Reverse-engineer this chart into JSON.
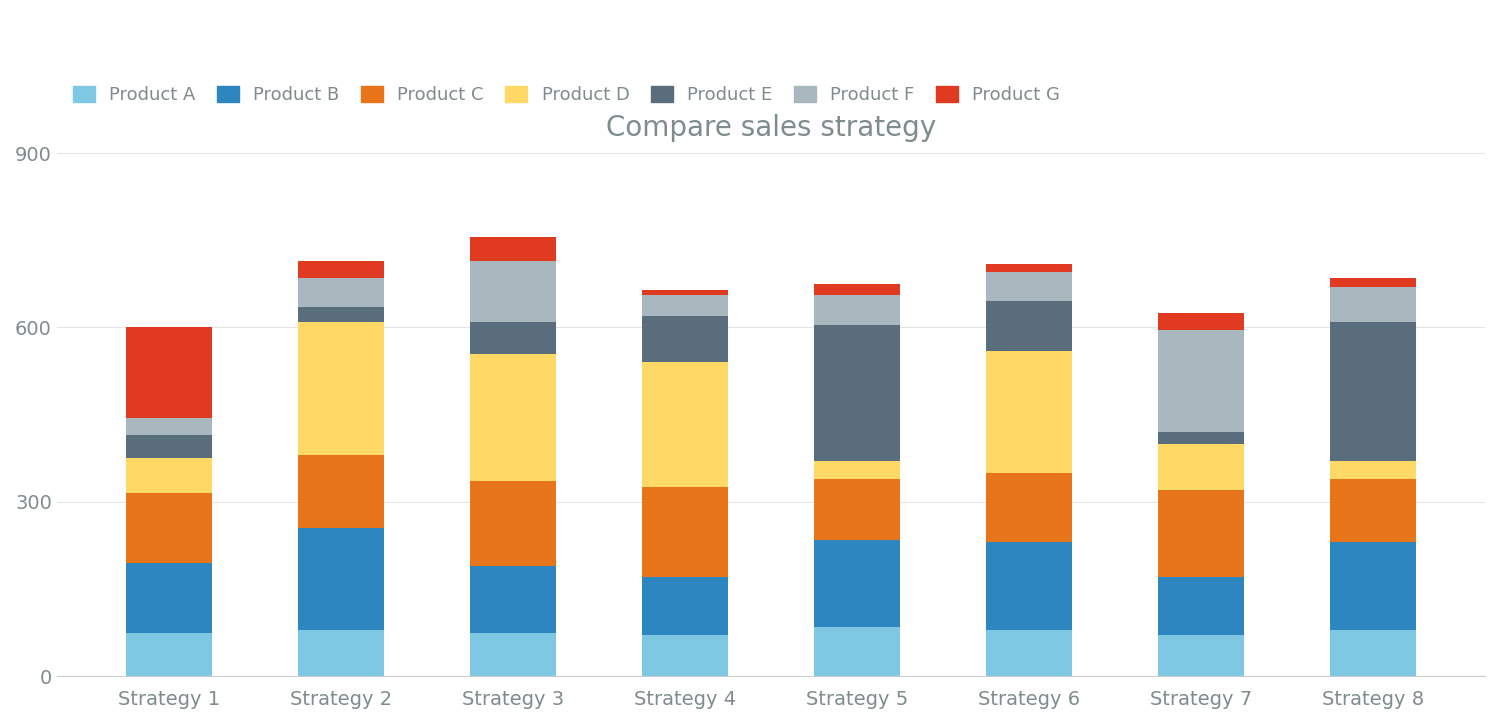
{
  "title": "Compare sales strategy",
  "categories": [
    "Strategy 1",
    "Strategy 2",
    "Strategy 3",
    "Strategy 4",
    "Strategy 5",
    "Strategy 6",
    "Strategy 7",
    "Strategy 8"
  ],
  "products": [
    "Product A",
    "Product B",
    "Product C",
    "Product D",
    "Product E",
    "Product F",
    "Product G"
  ],
  "colors": [
    "#7EC8E3",
    "#2E86C1",
    "#E8751A",
    "#FFD966",
    "#5A6D7C",
    "#A8B8BE",
    "#E03A20"
  ],
  "values": {
    "Product A": [
      75,
      80,
      75,
      70,
      85,
      80,
      70,
      80
    ],
    "Product B": [
      120,
      175,
      115,
      100,
      150,
      150,
      100,
      150
    ],
    "Product C": [
      120,
      125,
      145,
      155,
      105,
      120,
      150,
      110
    ],
    "Product D": [
      60,
      230,
      220,
      215,
      30,
      210,
      80,
      30
    ],
    "Product E": [
      40,
      25,
      55,
      80,
      235,
      85,
      20,
      240
    ],
    "Product F": [
      30,
      50,
      105,
      35,
      50,
      50,
      175,
      60
    ],
    "Product G": [
      155,
      30,
      40,
      10,
      20,
      15,
      30,
      15
    ]
  },
  "ylim": [
    0,
    900
  ],
  "yticks": [
    0,
    300,
    600,
    900
  ],
  "background_color": "#FFFFFF",
  "title_color": "#7F8C8D",
  "title_fontsize": 20,
  "legend_fontsize": 13,
  "tick_fontsize": 14,
  "bar_width": 0.5,
  "ax_label_color": "#7F8C8D"
}
